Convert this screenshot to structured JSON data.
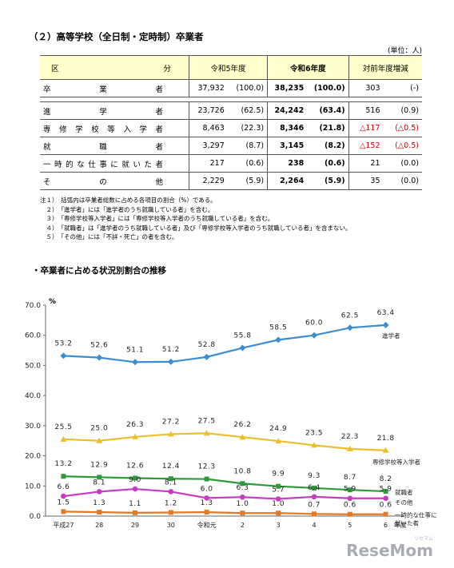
{
  "section_title": "（２）高等学校（全日制・定時制）卒業者",
  "unit": "(単位：人)",
  "table": {
    "headers": {
      "category": "区　　　　　　　分",
      "r5": "令和5年度",
      "r6": "令和6年度",
      "diff": "対前年度増減"
    },
    "rows": [
      {
        "label": "卒　　業　　者",
        "r5": "37,932",
        "r5p": "(100.0)",
        "r6": "38,235",
        "r6p": "(100.0)",
        "d": "303",
        "dp": "(-)",
        "neg": false
      },
      {
        "label": "進　　学　　者",
        "r5": "23,726",
        "r5p": "(62.5)",
        "r6": "24,242",
        "r6p": "(63.4)",
        "d": "516",
        "dp": "(0.9)",
        "neg": false
      },
      {
        "label": "専修学校等入学者",
        "r5": "8,463",
        "r5p": "(22.3)",
        "r6": "8,346",
        "r6p": "(21.8)",
        "d": "△117",
        "dp": "(△0.5)",
        "neg": true
      },
      {
        "label": "就　　職　　者",
        "r5": "3,297",
        "r5p": "(8.7)",
        "r6": "3,145",
        "r6p": "(8.2)",
        "d": "△152",
        "dp": "(△0.5)",
        "neg": true
      },
      {
        "label": "一時的な仕事に就いた者",
        "r5": "217",
        "r5p": "(0.6)",
        "r6": "238",
        "r6p": "(0.6)",
        "d": "21",
        "dp": "(0.0)",
        "neg": false
      },
      {
        "label": "そ　　の　　他",
        "r5": "2,229",
        "r5p": "(5.9)",
        "r6": "2,264",
        "r6p": "(5.9)",
        "d": "35",
        "dp": "(0.0)",
        "neg": false
      }
    ]
  },
  "notes": [
    "注１）　括弧内は卒業者総数に占める各項目の割合（%）である。",
    "　２）　「進学者」には「進学者のうち就職している者」を含む。",
    "　３）　「専修学校等入学者」には「専修学校等入学者のうち就職している者」を含む。",
    "　４）　「就職者」は「進学者のうち就職している者」及び「専修学校等入学者のうち就職している者」を含まない。",
    "　５）　「その他」には「不詳・死亡」の者を含む。"
  ],
  "chart_title": "・卒業者に占める状況別割合の推移",
  "logo": {
    "main": "ReseMom",
    "sub": "リセマム"
  },
  "chart_data": {
    "type": "line",
    "ylabel": "%",
    "xlabel_suffix": "年度",
    "ylim": [
      0,
      70
    ],
    "yticks": [
      "0.0",
      "10.0",
      "20.0",
      "30.0",
      "40.0",
      "50.0",
      "60.0",
      "70.0"
    ],
    "ytick_values": [
      0,
      10,
      20,
      30,
      40,
      50,
      60,
      70
    ],
    "categories": [
      "平成27",
      "28",
      "29",
      "30",
      "令和元",
      "2",
      "3",
      "4",
      "5",
      "6"
    ],
    "series": [
      {
        "name": "進学者",
        "color": "#3c8ed0",
        "marker": "diamond",
        "values": [
          53.2,
          52.6,
          51.1,
          51.2,
          52.8,
          55.8,
          58.5,
          60.0,
          62.5,
          63.4
        ],
        "labels": [
          "53.2",
          "52.6",
          "51.1",
          "51.2",
          "52.8",
          "55.8",
          "58.5",
          "60.0",
          "62.5",
          "63.4"
        ]
      },
      {
        "name": "専修学校等入学者",
        "color": "#ecbf2c",
        "marker": "triangle",
        "values": [
          25.5,
          25.0,
          26.3,
          27.2,
          27.5,
          26.2,
          24.9,
          23.5,
          22.3,
          21.8
        ],
        "labels": [
          "25.5",
          "25.0",
          "26.3",
          "27.2",
          "27.5",
          "26.2",
          "24.9",
          "23.5",
          "22.3",
          "21.8"
        ]
      },
      {
        "name": "就職者",
        "color": "#2f9a3a",
        "marker": "square",
        "values": [
          13.2,
          12.9,
          12.6,
          12.4,
          12.3,
          10.8,
          9.9,
          9.3,
          8.7,
          8.2
        ],
        "labels": [
          "13.2",
          "12.9",
          "12.6",
          "12.4",
          "12.3",
          "10.8",
          "9.9",
          "9.3",
          "8.7",
          "8.2"
        ]
      },
      {
        "name": "その他",
        "color": "#c83cc4",
        "marker": "circle",
        "values": [
          6.6,
          8.1,
          9.0,
          8.1,
          6.0,
          6.3,
          5.7,
          6.4,
          5.9,
          5.9
        ],
        "labels": [
          "6.6",
          "8.1",
          "9.0",
          "8.1",
          "6.0",
          "6.3",
          "5.7",
          "6.4",
          "5.9",
          "5.9"
        ]
      },
      {
        "name": "一時的な仕事に就いた者",
        "name_lines": [
          "一時的な仕事に",
          "就いた者"
        ],
        "color": "#e07a24",
        "marker": "square",
        "values": [
          1.5,
          1.3,
          1.1,
          1.2,
          1.3,
          1.0,
          1.0,
          0.7,
          0.6,
          0.6
        ],
        "labels": [
          "1.5",
          "1.3",
          "1.1",
          "1.2",
          "1.3",
          "1.0",
          "1.0",
          "0.7",
          "0.6",
          "0.6"
        ]
      }
    ]
  }
}
